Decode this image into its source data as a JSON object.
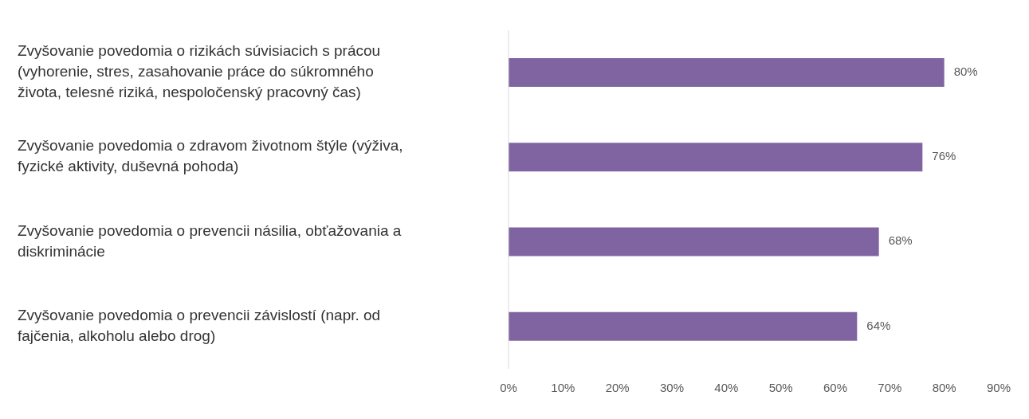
{
  "chart_data": {
    "type": "bar",
    "orientation": "horizontal",
    "categories": [
      "Zvyšovanie povedomia o rizikách súvisiacich s prácou (vyhorenie, stres, zasahovanie práce do súkromného života, telesné riziká, nespoločenský pracovný čas)",
      "Zvyšovanie povedomia o zdravom životnom štýle (výživa, fyzické aktivity, duševná pohoda)",
      "Zvyšovanie povedomia o prevencii násilia, obťažovania a diskriminácie",
      "Zvyšovanie povedomia o prevencii závislostí (napr. od fajčenia, alkoholu alebo drog)"
    ],
    "values": [
      80,
      76,
      68,
      64
    ],
    "value_labels": [
      "80%",
      "76%",
      "68%",
      "64%"
    ],
    "color": "#8064a2",
    "xlim": [
      0,
      90
    ],
    "xticks": [
      {
        "value": 0,
        "label": "0%"
      },
      {
        "value": 10,
        "label": "10%"
      },
      {
        "value": 20,
        "label": "20%"
      },
      {
        "value": 30,
        "label": "30%"
      },
      {
        "value": 40,
        "label": "40%"
      },
      {
        "value": 50,
        "label": "50%"
      },
      {
        "value": 60,
        "label": "60%"
      },
      {
        "value": 70,
        "label": "70%"
      },
      {
        "value": 80,
        "label": "80%"
      },
      {
        "value": 90,
        "label": "90%"
      }
    ],
    "grid": false,
    "legend": false
  }
}
